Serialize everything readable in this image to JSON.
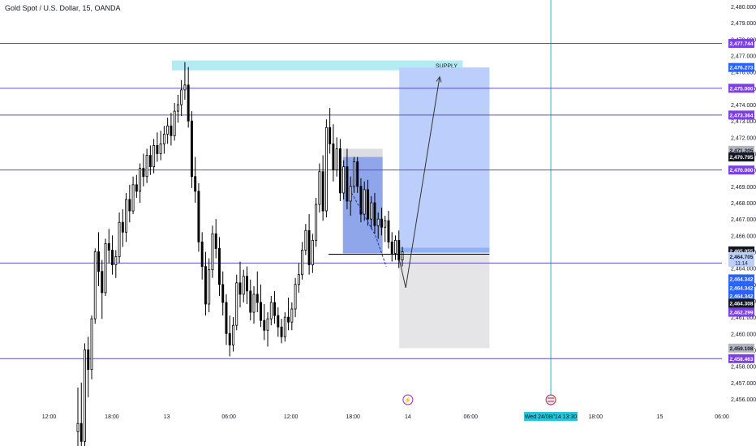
{
  "header": {
    "title": "Gold Spot / U.S. Dollar, 15, OANDA"
  },
  "colors": {
    "horizontal_line": "#5b4fc7",
    "vertical_line": "#22b8cf",
    "candle": "#000000",
    "supply_zone": "#b2ebf2",
    "profit_zone": "#bbcefc",
    "stop_zone": "#e5e5e8",
    "order_block": "#7c97e8",
    "badge_purple": "#7b3fe4",
    "badge_blue": "#2962ff",
    "badge_black": "#131722",
    "badge_gray": "#b2b5be",
    "date_badge": "#26c6da"
  },
  "chart_data": {
    "type": "candlestick",
    "symbol": "Gold Spot / U.S. Dollar",
    "interval": "15",
    "source": "OANDA",
    "ylim": [
      2455.6,
      2480.4
    ],
    "y_ticks": [
      2456,
      2457,
      2458,
      2459,
      2460,
      2461,
      2462,
      2463,
      2464,
      2465,
      2466,
      2467,
      2468,
      2469,
      2470,
      2471,
      2472,
      2473,
      2474,
      2475,
      2476,
      2477,
      2478,
      2479,
      2480
    ],
    "y_tick_labels": [
      "2,456.000",
      "2,457.000",
      "2,458.000",
      "2,459.000",
      "2,460.000",
      "2,461.000",
      "2,462.000",
      "2,463.000",
      "2,464.000",
      "2,465.000",
      "2,466.000",
      "2,467.000",
      "2,468.000",
      "2,469.000",
      "2,470.000",
      "2,471.000",
      "2,472.000",
      "2,473.000",
      "2,474.000",
      "2,475.000",
      "2,476.000",
      "2,477.000",
      "2,478.000",
      "2,479.000",
      "2,480.000"
    ],
    "x_ticks": [
      {
        "label": "12:00",
        "pos": 0.068
      },
      {
        "label": "18:00",
        "pos": 0.155
      },
      {
        "label": "13",
        "pos": 0.231
      },
      {
        "label": "06:00",
        "pos": 0.317
      },
      {
        "label": "12:00",
        "pos": 0.403
      },
      {
        "label": "18:00",
        "pos": 0.489
      },
      {
        "label": "14",
        "pos": 0.565
      },
      {
        "label": "06:00",
        "pos": 0.652
      },
      {
        "label": "18:00",
        "pos": 0.825
      },
      {
        "label": "15",
        "pos": 0.914
      },
      {
        "label": "06:00",
        "pos": 1.0
      }
    ],
    "crosshair_date": "Wed 24/08/'14",
    "crosshair_time": "13:30",
    "horizontal_levels": [
      2477.744,
      2475.0,
      2473.364,
      2470.0,
      2464.308,
      2458.463
    ],
    "supply_label": "SUPPLY",
    "supply_zone": {
      "y_top": 2476.7,
      "y_bottom": 2476.1,
      "x_start": 0.238,
      "x_end": 0.641
    },
    "position": {
      "x_start": 0.553,
      "x_end": 0.678,
      "entry": 2464.95,
      "target": 2476.273,
      "stop": 2459.108
    },
    "order_block": {
      "x_start": 0.475,
      "x_end": 0.53,
      "y_top": 2470.8,
      "y_bottom": 2464.9
    },
    "order_block_gray": {
      "x_start": 0.475,
      "x_end": 0.53,
      "y_top": 2471.3,
      "y_bottom": 2470.8
    },
    "entry_line": {
      "x_start": 0.455,
      "x_end": 0.678,
      "y": 2464.85
    },
    "projection": {
      "points": [
        [
          0.553,
          2464.55
        ],
        [
          0.562,
          2462.8
        ],
        [
          0.609,
          2475.7
        ]
      ],
      "arrow": true
    },
    "dashed_path": [
      [
        0.487,
        2468.6
      ],
      [
        0.52,
        2466.0
      ],
      [
        0.535,
        2464.1
      ]
    ],
    "vertical_line_x": 0.763,
    "price_axis_badges": [
      {
        "price": 2477.744,
        "label": "2,477.744",
        "color": "#7b3fe4",
        "text": "#ffffff"
      },
      {
        "price": 2476.273,
        "label": "2,476.273",
        "color": "#2962ff",
        "text": "#ffffff"
      },
      {
        "price": 2475.0,
        "label": "2,475.000",
        "color": "#7b3fe4",
        "text": "#ffffff"
      },
      {
        "price": 2473.364,
        "label": "2,473.364",
        "color": "#7b3fe4",
        "text": "#ffffff"
      },
      {
        "price": 2471.205,
        "label": "2,471.205",
        "color": "#b2b5be",
        "text": "#131722"
      },
      {
        "price": 2470.795,
        "label": "2,470.795",
        "color": "#131722",
        "text": "#ffffff"
      },
      {
        "price": 2470.0,
        "label": "2,470.000",
        "color": "#7b3fe4",
        "text": "#ffffff"
      },
      {
        "price": 2465.055,
        "label": "2,465.055",
        "color": "#131722",
        "text": "#ffffff"
      },
      {
        "price": 2464.705,
        "label": "2,464.705",
        "color": "#bbcefc",
        "text": "#131722",
        "sub": "11:14"
      },
      {
        "price": 2463.342,
        "label": "2,464.342",
        "color": "#2962ff",
        "text": "#ffffff"
      },
      {
        "price": 2462.8,
        "label": "2,464.342",
        "color": "#2962ff",
        "text": "#ffffff"
      },
      {
        "price": 2462.3,
        "label": "2,464.342",
        "color": "#2962ff",
        "text": "#ffffff"
      },
      {
        "price": 2461.85,
        "label": "2,464.308",
        "color": "#131722",
        "text": "#ffffff"
      },
      {
        "price": 2461.3,
        "label": "2,462.299",
        "color": "#7b3fe4",
        "text": "#ffffff"
      },
      {
        "price": 2459.108,
        "label": "2,459.108",
        "color": "#b2b5be",
        "text": "#131722"
      },
      {
        "price": 2458.463,
        "label": "2,458.463",
        "color": "#7b3fe4",
        "text": "#ffffff"
      }
    ],
    "candles": [
      [
        2454.0,
        2456.7,
        2453.0,
        2454.5
      ],
      [
        2454.5,
        2457.0,
        2452.3,
        2453.4
      ],
      [
        2453.4,
        2459.4,
        2452.6,
        2459.0
      ],
      [
        2459.0,
        2459.8,
        2456.1,
        2457.8
      ],
      [
        2457.8,
        2461.1,
        2457.2,
        2460.9
      ],
      [
        2460.9,
        2465.2,
        2460.6,
        2465.0
      ],
      [
        2465.0,
        2466.2,
        2462.9,
        2463.8
      ],
      [
        2463.8,
        2464.5,
        2460.9,
        2462.5
      ],
      [
        2462.5,
        2465.8,
        2462.3,
        2465.5
      ],
      [
        2465.5,
        2466.4,
        2464.3,
        2465.1
      ],
      [
        2465.1,
        2466.0,
        2463.6,
        2464.2
      ],
      [
        2464.2,
        2465.1,
        2463.4,
        2464.7
      ],
      [
        2464.7,
        2467.4,
        2464.3,
        2466.8
      ],
      [
        2466.8,
        2467.6,
        2465.3,
        2466.2
      ],
      [
        2466.2,
        2468.6,
        2465.6,
        2468.2
      ],
      [
        2468.2,
        2469.1,
        2466.8,
        2467.5
      ],
      [
        2467.5,
        2469.6,
        2467.3,
        2469.1
      ],
      [
        2469.1,
        2469.7,
        2468.3,
        2468.7
      ],
      [
        2468.7,
        2470.4,
        2468.0,
        2470.1
      ],
      [
        2470.1,
        2471.0,
        2469.0,
        2469.6
      ],
      [
        2469.6,
        2471.3,
        2469.2,
        2470.9
      ],
      [
        2470.9,
        2471.5,
        2469.7,
        2470.2
      ],
      [
        2470.2,
        2471.9,
        2469.8,
        2471.5
      ],
      [
        2471.5,
        2472.3,
        2470.5,
        2471.0
      ],
      [
        2471.0,
        2472.4,
        2470.6,
        2471.6
      ],
      [
        2471.6,
        2472.7,
        2471.0,
        2472.2
      ],
      [
        2472.2,
        2473.2,
        2471.6,
        2472.7
      ],
      [
        2472.7,
        2473.5,
        2471.5,
        2472.1
      ],
      [
        2472.1,
        2474.1,
        2471.8,
        2473.6
      ],
      [
        2473.6,
        2474.6,
        2472.9,
        2474.0
      ],
      [
        2474.0,
        2475.5,
        2473.3,
        2474.9
      ],
      [
        2474.9,
        2476.6,
        2474.3,
        2475.2
      ],
      [
        2475.2,
        2476.3,
        2472.6,
        2473.0
      ],
      [
        2473.0,
        2473.6,
        2468.9,
        2469.6
      ],
      [
        2469.6,
        2470.8,
        2468.0,
        2468.7
      ],
      [
        2468.7,
        2469.2,
        2465.0,
        2465.6
      ],
      [
        2465.6,
        2466.2,
        2463.3,
        2464.1
      ],
      [
        2464.1,
        2465.0,
        2461.1,
        2461.8
      ],
      [
        2461.8,
        2464.6,
        2461.3,
        2463.9
      ],
      [
        2463.9,
        2466.6,
        2463.4,
        2466.1
      ],
      [
        2466.1,
        2467.0,
        2464.6,
        2465.2
      ],
      [
        2465.2,
        2465.9,
        2462.3,
        2463.0
      ],
      [
        2463.0,
        2463.8,
        2461.1,
        2461.9
      ],
      [
        2461.9,
        2462.4,
        2459.3,
        2460.0
      ],
      [
        2460.0,
        2461.1,
        2458.6,
        2459.3
      ],
      [
        2459.3,
        2461.0,
        2458.9,
        2460.5
      ],
      [
        2460.5,
        2463.6,
        2460.2,
        2463.1
      ],
      [
        2463.1,
        2464.4,
        2461.6,
        2462.4
      ],
      [
        2462.4,
        2463.9,
        2461.9,
        2463.5
      ],
      [
        2463.5,
        2464.1,
        2461.8,
        2462.6
      ],
      [
        2462.6,
        2463.3,
        2460.8,
        2461.3
      ],
      [
        2461.3,
        2462.9,
        2460.6,
        2462.4
      ],
      [
        2462.4,
        2463.8,
        2461.3,
        2461.9
      ],
      [
        2461.9,
        2463.0,
        2460.4,
        2460.8
      ],
      [
        2460.8,
        2461.8,
        2459.6,
        2460.2
      ],
      [
        2460.2,
        2461.3,
        2459.2,
        2460.9
      ],
      [
        2460.9,
        2462.3,
        2460.5,
        2461.9
      ],
      [
        2461.9,
        2462.6,
        2460.6,
        2461.1
      ],
      [
        2461.1,
        2461.6,
        2459.8,
        2460.4
      ],
      [
        2460.4,
        2460.9,
        2459.4,
        2459.8
      ],
      [
        2459.8,
        2461.3,
        2459.5,
        2461.0
      ],
      [
        2461.0,
        2462.2,
        2460.2,
        2460.7
      ],
      [
        2460.7,
        2461.9,
        2460.2,
        2461.5
      ],
      [
        2461.5,
        2463.4,
        2461.0,
        2463.0
      ],
      [
        2463.0,
        2464.3,
        2462.5,
        2463.6
      ],
      [
        2463.6,
        2465.6,
        2463.3,
        2465.1
      ],
      [
        2465.1,
        2466.7,
        2464.8,
        2466.3
      ],
      [
        2466.3,
        2467.3,
        2463.6,
        2464.2
      ],
      [
        2464.2,
        2466.1,
        2463.7,
        2465.7
      ],
      [
        2465.7,
        2468.3,
        2465.3,
        2467.9
      ],
      [
        2467.9,
        2470.4,
        2467.4,
        2469.9
      ],
      [
        2469.9,
        2470.9,
        2466.9,
        2467.5
      ],
      [
        2467.5,
        2473.1,
        2467.1,
        2472.6
      ],
      [
        2472.6,
        2473.8,
        2471.0,
        2471.6
      ],
      [
        2471.6,
        2472.8,
        2469.3,
        2470.0
      ],
      [
        2470.0,
        2472.0,
        2469.6,
        2471.3
      ],
      [
        2471.3,
        2471.9,
        2468.1,
        2468.6
      ],
      [
        2468.6,
        2470.6,
        2468.2,
        2470.2
      ],
      [
        2470.2,
        2471.3,
        2467.6,
        2468.1
      ],
      [
        2468.1,
        2469.6,
        2467.2,
        2469.0
      ],
      [
        2469.0,
        2470.8,
        2468.6,
        2470.5
      ],
      [
        2470.5,
        2470.8,
        2468.6,
        2469.0
      ],
      [
        2469.0,
        2469.5,
        2466.8,
        2467.3
      ],
      [
        2467.3,
        2469.3,
        2466.9,
        2468.8
      ],
      [
        2468.8,
        2469.4,
        2466.6,
        2467.0
      ],
      [
        2467.0,
        2468.4,
        2466.4,
        2468.0
      ],
      [
        2468.0,
        2468.6,
        2466.1,
        2466.6
      ],
      [
        2466.6,
        2467.4,
        2465.8,
        2467.0
      ],
      [
        2467.0,
        2467.7,
        2466.0,
        2466.5
      ],
      [
        2466.5,
        2467.2,
        2465.6,
        2466.9
      ],
      [
        2466.9,
        2467.5,
        2465.2,
        2465.6
      ],
      [
        2465.6,
        2466.2,
        2464.4,
        2464.9
      ],
      [
        2464.9,
        2466.0,
        2464.5,
        2465.7
      ],
      [
        2465.7,
        2466.3,
        2464.0,
        2464.5
      ],
      [
        2464.5,
        2465.3,
        2464.1,
        2465.0
      ]
    ]
  }
}
